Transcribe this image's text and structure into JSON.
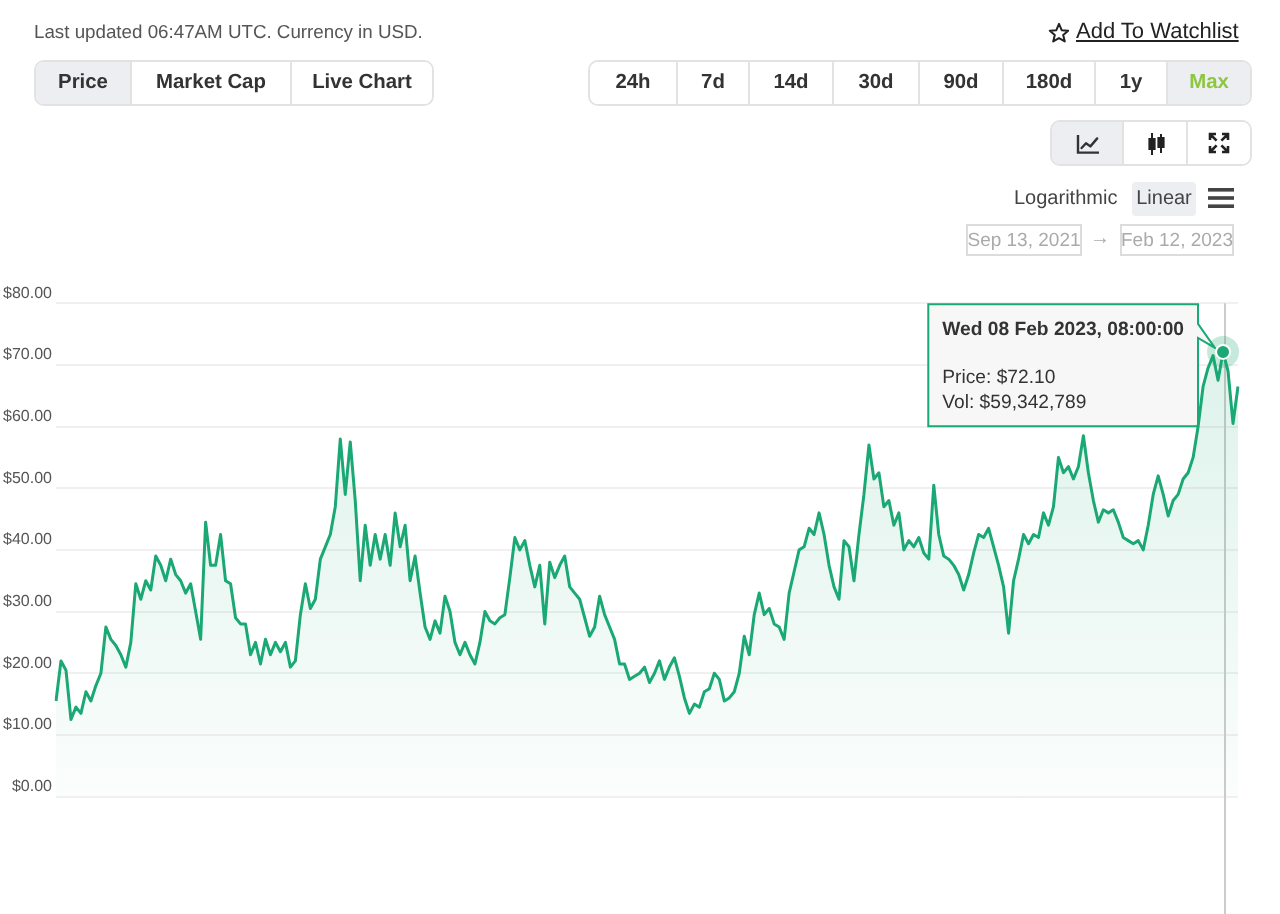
{
  "chart_data": {
    "type": "area",
    "subtitle": "Last updated 06:47AM UTC. Currency in USD.",
    "annotations": [
      "Add To Watchlist",
      "Price",
      "Market Cap",
      "Live Chart",
      "24h",
      "7d",
      "14d",
      "30d",
      "90d",
      "180d",
      "1y",
      "Max",
      "Logarithmic",
      "Linear",
      "Sep 13, 2021",
      "→",
      "Feb 12, 2023",
      "Wed 08 Feb 2023, 08:00:00",
      "Price: $72.10",
      "Vol: $59,342,789"
    ],
    "categories": [
      null,
      null,
      null,
      null,
      null,
      null,
      null,
      null,
      null,
      null,
      null,
      null,
      null,
      null,
      null,
      null,
      null,
      null,
      null,
      null,
      null,
      null,
      null,
      null,
      null,
      null,
      null,
      null,
      null,
      null,
      null,
      null,
      null,
      null,
      null,
      null,
      null,
      null,
      null,
      null,
      null,
      null,
      null,
      null,
      null,
      null,
      null,
      null,
      null,
      null,
      null,
      null,
      null,
      null,
      null,
      null,
      null,
      null,
      null,
      null,
      null,
      null,
      null,
      null,
      null,
      null,
      null,
      null,
      null,
      null,
      null,
      null,
      null,
      null,
      null,
      null,
      null,
      null,
      null,
      null,
      null,
      null,
      null,
      null,
      null,
      null,
      null,
      null,
      null,
      null,
      null,
      null,
      null,
      null,
      null,
      null,
      null,
      null,
      null,
      null,
      null,
      null,
      null,
      null,
      null,
      null,
      null,
      null,
      null,
      null,
      null,
      null,
      null,
      null,
      null,
      null,
      null,
      null,
      null,
      null,
      null,
      null,
      null,
      null,
      null,
      null,
      null,
      null,
      null,
      null,
      null,
      null,
      null,
      null,
      null,
      null,
      null,
      null,
      null,
      null,
      null,
      null,
      null,
      null,
      null,
      null,
      null,
      null,
      null,
      null,
      null,
      null,
      null,
      null,
      null,
      null,
      null,
      null,
      null,
      null,
      null,
      null,
      null,
      null,
      null,
      null,
      null,
      null,
      null,
      null,
      null,
      null,
      null,
      null,
      null,
      null,
      null,
      null,
      null,
      null,
      null,
      null,
      null,
      null,
      null,
      null,
      null,
      null,
      null,
      null,
      null,
      null,
      null,
      null,
      null,
      null,
      null,
      null,
      null,
      null,
      null,
      null,
      null,
      null,
      null,
      null,
      null,
      null,
      null,
      null,
      null,
      null,
      null,
      null,
      null,
      null,
      null,
      null,
      null,
      null,
      null,
      null,
      null,
      null,
      null,
      null,
      null,
      null,
      null,
      null,
      null,
      null,
      null,
      null,
      null,
      null,
      null,
      null
    ],
    "values": [
      15.5,
      22,
      20.5,
      12.5,
      14.5,
      13.5,
      17,
      15.5,
      18,
      20,
      27.5,
      25.5,
      24.5,
      23,
      21,
      25,
      34.5,
      32,
      35,
      33.5,
      39,
      37.5,
      35,
      38.5,
      36,
      35,
      33,
      34.5,
      30,
      25.5,
      44.5,
      37.5,
      37.5,
      42.5,
      35,
      34.5,
      29,
      28,
      28,
      23,
      25,
      21.5,
      25.5,
      23,
      25,
      23.5,
      25,
      21,
      22,
      29.5,
      34.5,
      30.5,
      32,
      38.5,
      40.5,
      42.5,
      47,
      58,
      49,
      57.5,
      48,
      35,
      44,
      37.5,
      42.5,
      38.5,
      42.5,
      37.5,
      46,
      40.5,
      44,
      35,
      39,
      33,
      27.5,
      25.5,
      28.5,
      26.5,
      32.5,
      30,
      25,
      23,
      25,
      23,
      21.5,
      25,
      30,
      28.5,
      28,
      29,
      29.5,
      35.5,
      42,
      40,
      41.5,
      37.5,
      34,
      37.5,
      28,
      38,
      35.5,
      37.5,
      39,
      34,
      33,
      32,
      29,
      26,
      27.5,
      32.5,
      29.5,
      27.5,
      25.5,
      21.5,
      21.5,
      19,
      19.5,
      20,
      21,
      18.5,
      20,
      22,
      19,
      21,
      22.5,
      19.5,
      16,
      13.5,
      15,
      14.5,
      17,
      17.5,
      20,
      19,
      15.5,
      16,
      17,
      20,
      26,
      23,
      29.5,
      33,
      29.5,
      30.5,
      28,
      27.5,
      25.5,
      33,
      36.5,
      40,
      40.5,
      43.5,
      42.5,
      46,
      42.5,
      37.5,
      34,
      32,
      41.5,
      40.5,
      35,
      42.5,
      49,
      57,
      51.5,
      52.5,
      47,
      48,
      44,
      46,
      40,
      41.5,
      40.5,
      42,
      39.5,
      38.5,
      50.5,
      42.5,
      39,
      38.5,
      37.5,
      36,
      33.5,
      36,
      39.5,
      42.5,
      42,
      43.5,
      40.5,
      37.5,
      34,
      26.5,
      35,
      38.5,
      42.5,
      41,
      42.5,
      42,
      46,
      44,
      47,
      55,
      52.5,
      53.5,
      51.5,
      53.5,
      58.5,
      52.5,
      48,
      44.5,
      46.5,
      46,
      46.5,
      44.5,
      42,
      41.5,
      41,
      41.5,
      40,
      44,
      49,
      52,
      49,
      45.5,
      48,
      49,
      51.5,
      52.5,
      55,
      60,
      66.5,
      69.5,
      71.5,
      67.5,
      72.1,
      69,
      60.5,
      66.5
    ],
    "color": "#1aa874",
    "ylim": [
      0,
      80
    ],
    "yticks": [
      {
        "value": 0,
        "label": "$0.00"
      },
      {
        "value": 10,
        "label": "$10.00"
      },
      {
        "value": 20,
        "label": "$20.00"
      },
      {
        "value": 30,
        "label": "$30.00"
      },
      {
        "value": 40,
        "label": "$40.00"
      },
      {
        "value": 50,
        "label": "$50.00"
      },
      {
        "value": 60,
        "label": "$60.00"
      },
      {
        "value": 70,
        "label": "$70.00"
      },
      {
        "value": 80,
        "label": "$80.00"
      }
    ],
    "grid": "y"
  }
}
